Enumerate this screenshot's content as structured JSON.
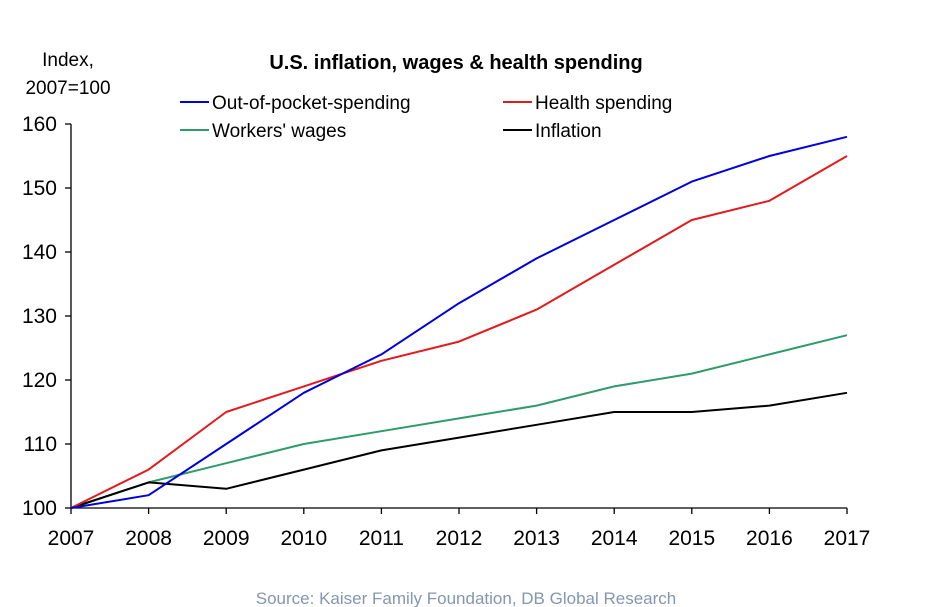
{
  "chart_data": {
    "type": "line",
    "title": "U.S. inflation, wages & health spending",
    "ylabel_line1": "Index,",
    "ylabel_line2": "2007=100",
    "xlabel": "",
    "x": [
      "2007",
      "2008",
      "2009",
      "2010",
      "2011",
      "2012",
      "2013",
      "2014",
      "2015",
      "2016",
      "2017"
    ],
    "ylim": [
      100,
      160
    ],
    "yticks": [
      "100",
      "110",
      "120",
      "130",
      "140",
      "150",
      "160"
    ],
    "grid": false,
    "legend_position": "top",
    "series": [
      {
        "name": "Out-of-pocket-spending",
        "color": "#0000dd",
        "values": [
          100,
          102,
          110,
          118,
          124,
          132,
          139,
          145,
          151,
          155,
          158
        ]
      },
      {
        "name": "Health spending",
        "color": "#e31a1c",
        "values": [
          100,
          106,
          115,
          119,
          123,
          126,
          131,
          138,
          145,
          148,
          155
        ]
      },
      {
        "name": "Workers' wages",
        "color": "#2e9b6b",
        "values": [
          100,
          104,
          107,
          110,
          112,
          114,
          116,
          119,
          121,
          124,
          127
        ]
      },
      {
        "name": "Inflation",
        "color": "#000000",
        "values": [
          100,
          104,
          103,
          106,
          109,
          111,
          113,
          115,
          115,
          116,
          118
        ]
      }
    ],
    "source": "Source: Kaiser Family Foundation, DB Global Research"
  }
}
